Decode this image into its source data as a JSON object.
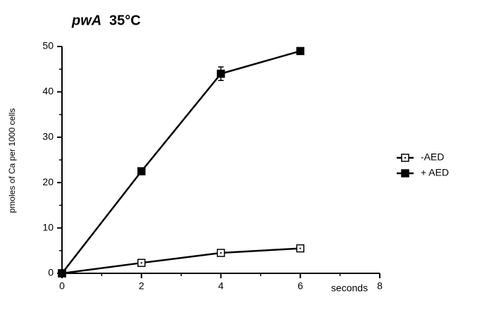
{
  "chart_data": {
    "type": "line",
    "title": "pwA",
    "title_condition": "35°C",
    "x_label": "seconds",
    "y_label": "pmoles of Ca per 1000 cells",
    "x": [
      0,
      2,
      4,
      6
    ],
    "series": [
      {
        "name": "-AED",
        "color": "#000000",
        "marker": "open",
        "values": [
          0,
          2.3,
          4.5,
          5.5
        ]
      },
      {
        "name": "+ AED",
        "color": "#000000",
        "marker": "filled",
        "values": [
          0,
          22.5,
          44,
          49
        ],
        "errors": [
          null,
          null,
          1.5,
          null
        ]
      }
    ],
    "xlim": [
      0,
      8
    ],
    "xticks": [
      0,
      2,
      4,
      6,
      8
    ],
    "xminorticks": [
      1,
      3,
      5,
      7
    ],
    "ylim": [
      0,
      50
    ],
    "yticks": [
      0,
      10,
      20,
      30,
      40,
      50
    ],
    "yminorticks": [
      5,
      15,
      25,
      35,
      45
    ],
    "grid": false,
    "legend": "right"
  }
}
